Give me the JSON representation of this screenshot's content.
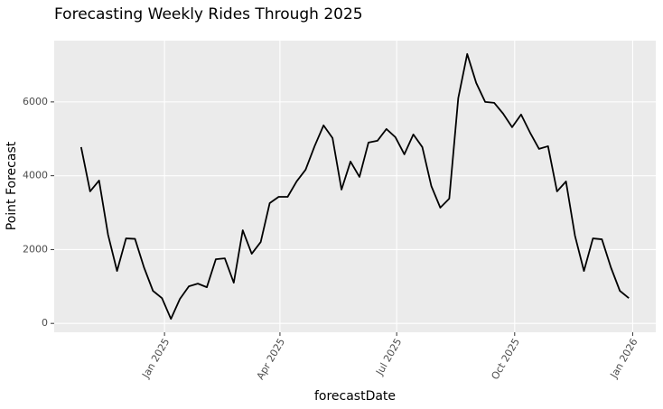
{
  "chart_data": {
    "type": "line",
    "title": "Forecasting Weekly Rides Through 2025",
    "x_label": "forecastDate",
    "y_label": "Point Forecast",
    "x": [
      "2024-10-28",
      "2024-11-04",
      "2024-11-11",
      "2024-11-18",
      "2024-11-25",
      "2024-12-02",
      "2024-12-09",
      "2024-12-16",
      "2024-12-23",
      "2024-12-30",
      "2025-01-06",
      "2025-01-13",
      "2025-01-20",
      "2025-01-27",
      "2025-02-03",
      "2025-02-10",
      "2025-02-17",
      "2025-02-24",
      "2025-03-03",
      "2025-03-10",
      "2025-03-17",
      "2025-03-24",
      "2025-03-31",
      "2025-04-07",
      "2025-04-14",
      "2025-04-21",
      "2025-04-28",
      "2025-05-05",
      "2025-05-12",
      "2025-05-19",
      "2025-05-26",
      "2025-06-02",
      "2025-06-09",
      "2025-06-16",
      "2025-06-23",
      "2025-06-30",
      "2025-07-07",
      "2025-07-14",
      "2025-07-21",
      "2025-07-28",
      "2025-08-04",
      "2025-08-11",
      "2025-08-18",
      "2025-08-25",
      "2025-09-01",
      "2025-09-08",
      "2025-09-15",
      "2025-09-22",
      "2025-09-29",
      "2025-10-06",
      "2025-10-13",
      "2025-10-20",
      "2025-10-27",
      "2025-11-03",
      "2025-11-10",
      "2025-11-17",
      "2025-11-24",
      "2025-12-01",
      "2025-12-08",
      "2025-12-15",
      "2025-12-22",
      "2025-12-29"
    ],
    "values": [
      4776,
      3576,
      3870,
      2400,
      1420,
      2302,
      2290,
      1518,
      882,
      686,
      122,
      661,
      1004,
      1078,
      980,
      1739,
      1763,
      1102,
      2523,
      1886,
      2204,
      3257,
      3429,
      3429,
      3845,
      4164,
      4800,
      5364,
      5021,
      3625,
      4384,
      3968,
      4898,
      4947,
      5266,
      5045,
      4580,
      5119,
      4776,
      3723,
      3135,
      3380,
      6098,
      7298,
      6515,
      6000,
      5976,
      5682,
      5315,
      5658,
      5168,
      4727,
      4800,
      3576,
      3845,
      2376,
      1420,
      2302,
      2278,
      1518,
      882,
      686
    ],
    "color": "#000000",
    "xlim": [
      "2024-10-07",
      "2026-01-19"
    ],
    "xticks": [
      {
        "value": "2025-01-01",
        "label": "Jan 2025"
      },
      {
        "value": "2025-04-01",
        "label": "Apr 2025"
      },
      {
        "value": "2025-07-01",
        "label": "Jul 2025"
      },
      {
        "value": "2025-10-01",
        "label": "Oct 2025"
      },
      {
        "value": "2026-01-01",
        "label": "Jan 2026"
      }
    ],
    "ylim": [
      -240,
      7660
    ],
    "yticks": [
      0,
      2000,
      4000,
      6000
    ],
    "grid": true
  }
}
